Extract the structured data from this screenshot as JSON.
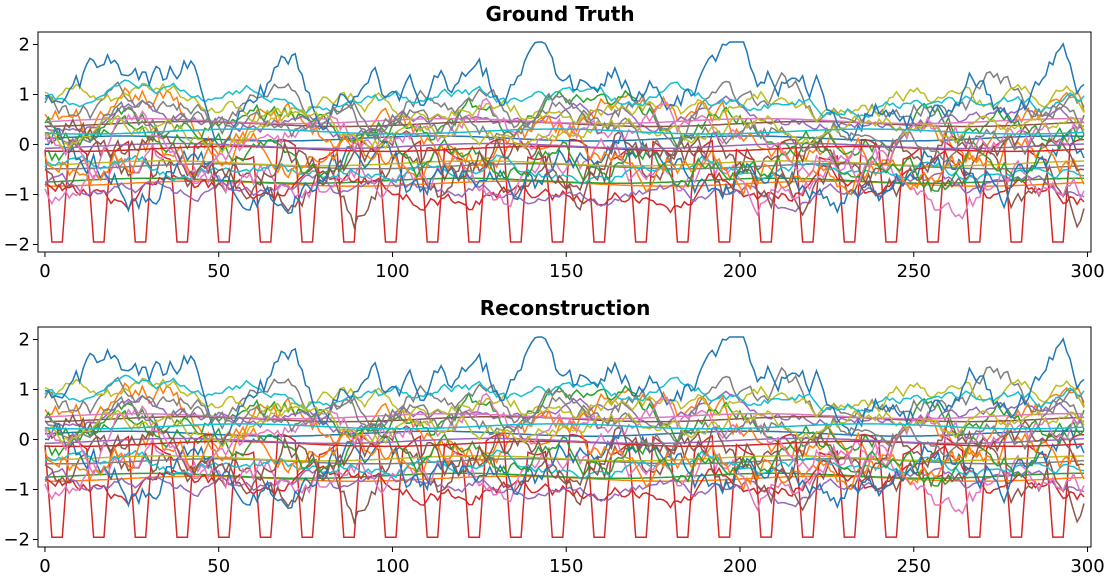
{
  "palette": [
    "#1f77b4",
    "#ff7f0e",
    "#2ca02c",
    "#d62728",
    "#9467bd",
    "#8c564b",
    "#e377c2",
    "#7f7f7f",
    "#bcbd22",
    "#17becf"
  ],
  "chart_data": [
    {
      "type": "line",
      "title": "Ground Truth",
      "xlabel": "",
      "ylabel": "",
      "xlim": [
        -2,
        301
      ],
      "ylim": [
        -2.15,
        2.25
      ],
      "xticks": [
        0,
        50,
        100,
        150,
        200,
        250,
        300
      ],
      "yticks": [
        2,
        1,
        0,
        -1,
        -2
      ],
      "ytick_labels": [
        "2",
        "1",
        "0",
        "−1",
        "−2"
      ],
      "grid": false,
      "legend": "none",
      "series_count": 30,
      "series_note": "approx. 30 overlapping unlabeled multivariate time-series channels, 300 steps each; values range about -2 to 2; red channel periodic dips to -2 roughly every 12 steps"
    },
    {
      "type": "line",
      "title": "Reconstruction",
      "xlabel": "",
      "ylabel": "",
      "xlim": [
        -2,
        301
      ],
      "ylim": [
        -2.15,
        2.25
      ],
      "xticks": [
        0,
        50,
        100,
        150,
        200,
        250,
        300
      ],
      "yticks": [
        2,
        1,
        0,
        -1,
        -2
      ],
      "ytick_labels": [
        "2",
        "1",
        "0",
        "−1",
        "−2"
      ],
      "grid": false,
      "legend": "none",
      "series_count": 30,
      "series_note": "reconstruction nearly identical to ground truth"
    }
  ]
}
